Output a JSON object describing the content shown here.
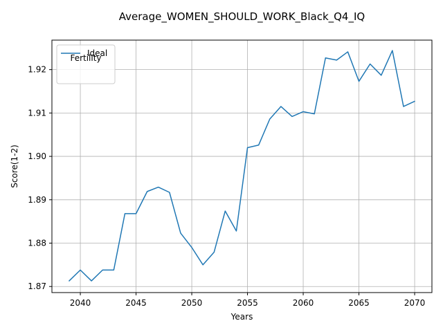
{
  "chart_data": {
    "type": "line",
    "title": "Average_WOMEN_SHOULD_WORK_Black_Q4_IQ",
    "xlabel": "Years",
    "ylabel": "Score(1-2)",
    "xlim": [
      2037.45,
      2071.55
    ],
    "ylim": [
      1.8686,
      1.9268
    ],
    "xticks": [
      2040,
      2045,
      2050,
      2055,
      2060,
      2065,
      2070
    ],
    "yticks": [
      1.87,
      1.88,
      1.89,
      1.9,
      1.91,
      1.92
    ],
    "ytick_labels": [
      "1.87",
      "1.88",
      "1.89",
      "1.90",
      "1.91",
      "1.92"
    ],
    "grid": true,
    "legend": {
      "title": "Fertility",
      "location": "top-left"
    },
    "series": [
      {
        "name": "Ideal",
        "color": "#1f77b4",
        "x": [
          2039,
          2040,
          2041,
          2042,
          2043,
          2044,
          2045,
          2046,
          2047,
          2048,
          2049,
          2050,
          2051,
          2052,
          2053,
          2054,
          2055,
          2056,
          2057,
          2058,
          2059,
          2060,
          2061,
          2062,
          2063,
          2064,
          2065,
          2066,
          2067,
          2068,
          2069,
          2070
        ],
        "values": [
          1.8713,
          1.8738,
          1.8713,
          1.8738,
          1.8738,
          1.8868,
          1.8868,
          1.8919,
          1.8929,
          1.8917,
          1.8823,
          1.879,
          1.875,
          1.8779,
          1.8874,
          1.8828,
          1.902,
          1.9026,
          1.9086,
          1.9115,
          1.9092,
          1.9103,
          1.9098,
          1.9227,
          1.9222,
          1.9241,
          1.9173,
          1.9213,
          1.9187,
          1.9244,
          1.9115,
          1.9127
        ]
      }
    ]
  }
}
